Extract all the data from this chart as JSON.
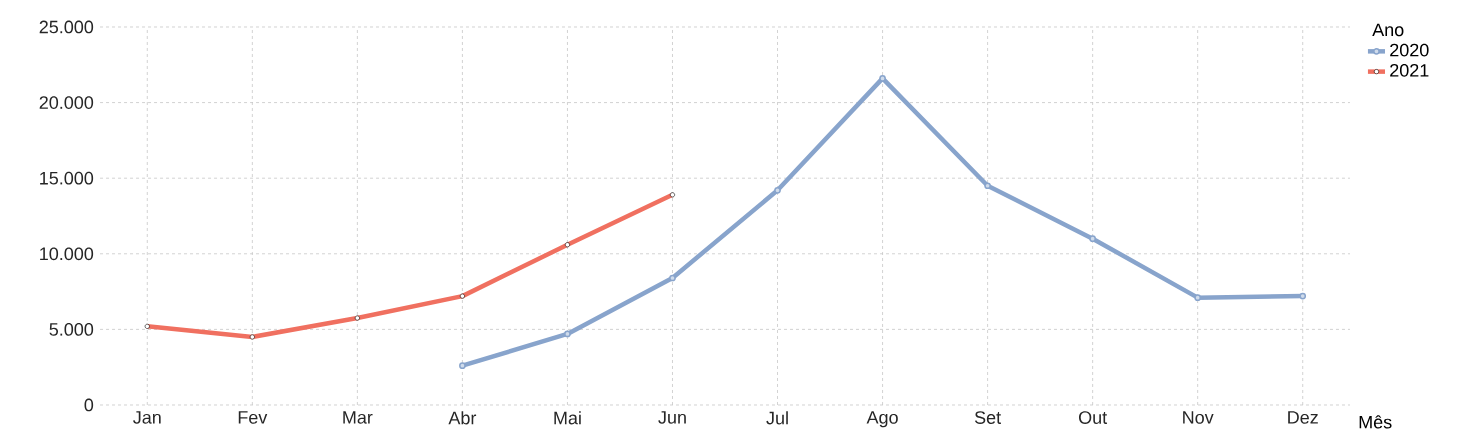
{
  "chart_data": {
    "type": "line",
    "xlabel": "Mês",
    "legend_title": "Ano",
    "categories": [
      "Jan",
      "Fev",
      "Mar",
      "Abr",
      "Mai",
      "Jun",
      "Jul",
      "Ago",
      "Set",
      "Out",
      "Nov",
      "Dez"
    ],
    "series": [
      {
        "name": "2020",
        "color": "#88a4cc",
        "values": [
          null,
          null,
          null,
          2600,
          4700,
          8400,
          14200,
          21600,
          14500,
          11000,
          7100,
          7200
        ]
      },
      {
        "name": "2021",
        "color": "#f07060",
        "values": [
          5200,
          4500,
          5750,
          7200,
          10600,
          13900,
          null,
          null,
          null,
          null,
          null,
          null
        ]
      }
    ],
    "ylim": [
      0,
      25000
    ],
    "yticks": [
      {
        "value": 0,
        "label": "0"
      },
      {
        "value": 5000,
        "label": "5.000"
      },
      {
        "value": 10000,
        "label": "10.000"
      },
      {
        "value": 15000,
        "label": "15.000"
      },
      {
        "value": 20000,
        "label": "20.000"
      },
      {
        "value": 25000,
        "label": "25.000"
      }
    ],
    "grid": true,
    "legend": "top right",
    "marker": "circle",
    "line_style": "solid"
  }
}
